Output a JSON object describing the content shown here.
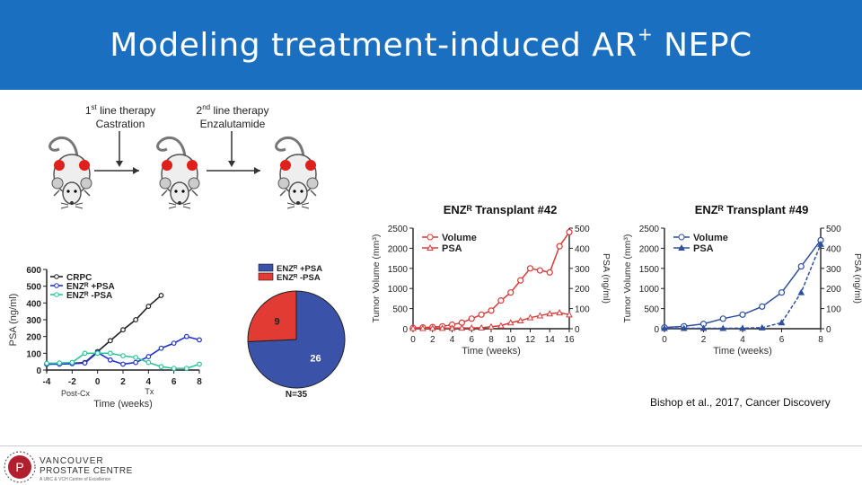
{
  "slide": {
    "title_main": "Modeling treatment-induced AR",
    "title_sup": "+",
    "title_end": " NEPC",
    "therapy1": {
      "ord": "1",
      "ord_sup": "st",
      "line": " line therapy",
      "agent": "Castration"
    },
    "therapy2": {
      "ord": "2",
      "ord_sup": "nd",
      "line": " line therapy",
      "agent": "Enzalutamide"
    },
    "citation": "Bishop et al., 2017, Cancer Discovery",
    "logo": {
      "name": "VANCOUVER",
      "name2": "PROSTATE CENTRE",
      "tagline": "A UBC & VCH Centre of Excellence"
    }
  },
  "colors": {
    "header": "#1a6fc0",
    "red": "#d93a3a",
    "blue": "#2f4f9f",
    "pie_blue": "#3a52a8",
    "pie_red": "#e23b33",
    "crpc": "#222222",
    "enz_pos": "#2233cc",
    "enz_neg": "#2cc49a"
  },
  "chart_data": [
    {
      "type": "line",
      "xlabel": "Time (weeks)",
      "ylabel": "PSA (ng/ml)",
      "xlim": [
        -4,
        8
      ],
      "ylim": [
        0,
        600
      ],
      "xticks": [
        "-4",
        "-2",
        "0",
        "2",
        "4",
        "6",
        "8"
      ],
      "yticks": [
        "0",
        "100",
        "200",
        "300",
        "400",
        "500",
        "600"
      ],
      "annotations": [
        "Post-Cx",
        "Tx"
      ],
      "series": [
        {
          "name": "CRPC",
          "x": [
            -4,
            -3,
            -2,
            -1,
            0,
            1,
            2,
            3,
            4,
            5
          ],
          "y": [
            35,
            38,
            40,
            45,
            110,
            175,
            240,
            300,
            380,
            445
          ]
        },
        {
          "name": "ENZR +PSA",
          "x": [
            -4,
            -3,
            -2,
            -1,
            0,
            1,
            2,
            3,
            4,
            5,
            6,
            7,
            8
          ],
          "y": [
            35,
            35,
            38,
            42,
            105,
            60,
            35,
            45,
            80,
            130,
            160,
            200,
            180
          ]
        },
        {
          "name": "ENZR -PSA",
          "x": [
            -4,
            -3,
            -2,
            -1,
            0,
            1,
            2,
            3,
            4,
            5,
            6,
            7,
            8
          ],
          "y": [
            40,
            42,
            45,
            100,
            100,
            100,
            85,
            75,
            45,
            20,
            10,
            10,
            35
          ]
        }
      ]
    },
    {
      "type": "pie",
      "legend": [
        "ENZR +PSA",
        "ENZR -PSA"
      ],
      "values": [
        26,
        9
      ],
      "total_label": "N=35"
    },
    {
      "type": "line",
      "title": "ENZR Transplant #42",
      "xlabel": "Time (weeks)",
      "ylabel": "Tumor Volume (mm³)",
      "ylabel_right": "PSA (ng/ml)",
      "xlim": [
        0,
        16
      ],
      "ylim": [
        0,
        2500
      ],
      "ylim_right": [
        0,
        500
      ],
      "xticks": [
        "0",
        "2",
        "4",
        "6",
        "8",
        "10",
        "12",
        "14",
        "16"
      ],
      "yticks": [
        "0",
        "500",
        "1000",
        "1500",
        "2000",
        "2500"
      ],
      "yticks_right": [
        "0",
        "100",
        "200",
        "300",
        "400",
        "500"
      ],
      "series": [
        {
          "name": "Volume",
          "axis": "left",
          "x": [
            0,
            1,
            2,
            3,
            4,
            5,
            6,
            7,
            8,
            9,
            10,
            11,
            12,
            13,
            14,
            15,
            16
          ],
          "y": [
            20,
            30,
            40,
            60,
            100,
            150,
            250,
            350,
            450,
            700,
            900,
            1200,
            1500,
            1450,
            1400,
            2050,
            2400
          ]
        },
        {
          "name": "PSA",
          "axis": "right",
          "x": [
            0,
            1,
            2,
            3,
            4,
            5,
            6,
            7,
            8,
            9,
            10,
            11,
            12,
            13,
            14,
            15,
            16
          ],
          "y": [
            2,
            2,
            3,
            3,
            3,
            4,
            4,
            5,
            10,
            15,
            30,
            40,
            55,
            65,
            75,
            80,
            70
          ]
        }
      ]
    },
    {
      "type": "line",
      "title": "ENZR Transplant #49",
      "xlabel": "Time (weeks)",
      "ylabel": "Tumor Volume (mm³)",
      "ylabel_right": "PSA (ng/ml)",
      "xlim": [
        0,
        8
      ],
      "ylim": [
        0,
        2500
      ],
      "ylim_right": [
        0,
        500
      ],
      "xticks": [
        "0",
        "2",
        "4",
        "6",
        "8"
      ],
      "yticks": [
        "0",
        "500",
        "1000",
        "1500",
        "2000",
        "2500"
      ],
      "yticks_right": [
        "0",
        "100",
        "200",
        "300",
        "400",
        "500"
      ],
      "series": [
        {
          "name": "Volume",
          "axis": "left",
          "x": [
            0,
            1,
            2,
            3,
            4,
            5,
            6,
            7,
            8
          ],
          "y": [
            30,
            60,
            120,
            250,
            350,
            550,
            900,
            1550,
            2200
          ]
        },
        {
          "name": "PSA",
          "axis": "right",
          "x": [
            0,
            1,
            2,
            3,
            4,
            5,
            6,
            7,
            8
          ],
          "y": [
            2,
            2,
            2,
            2,
            3,
            5,
            30,
            180,
            420
          ]
        }
      ]
    }
  ]
}
